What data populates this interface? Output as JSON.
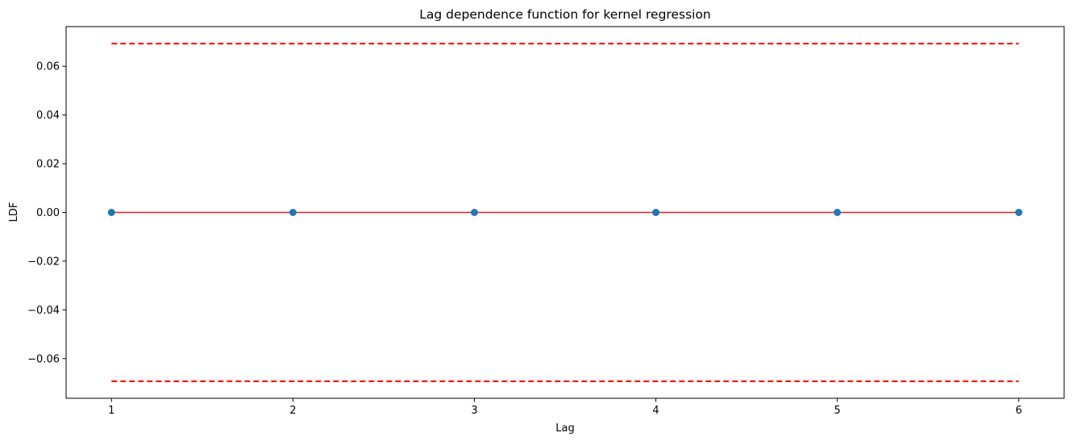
{
  "chart_data": {
    "type": "scatter",
    "title": "Lag dependence function for kernel regression",
    "xlabel": "Lag",
    "ylabel": "LDF",
    "x": [
      1,
      2,
      3,
      4,
      5,
      6
    ],
    "values": [
      0.0,
      0.0,
      0.0,
      0.0,
      0.0,
      0.0
    ],
    "xlim": [
      0.75,
      6.25
    ],
    "ylim": [
      -0.0763,
      0.0763
    ],
    "xticks": [
      1,
      2,
      3,
      4,
      5,
      6
    ],
    "xtick_labels": [
      "1",
      "2",
      "3",
      "4",
      "5",
      "6"
    ],
    "yticks": [
      0.06,
      0.04,
      0.02,
      0.0,
      -0.02,
      -0.04,
      -0.06
    ],
    "ytick_labels": [
      "0.06",
      "0.04",
      "0.02",
      "0.00",
      "−0.02",
      "−0.04",
      "−0.06"
    ],
    "confidence_bounds": {
      "upper": 0.0693,
      "lower": -0.0693,
      "x_range": [
        1,
        6
      ],
      "style": "dashed",
      "color": "#ff0000"
    },
    "stem_baseline_color": "#d62728",
    "marker_color": "#1f77b4",
    "grid": false,
    "legend": "none"
  }
}
